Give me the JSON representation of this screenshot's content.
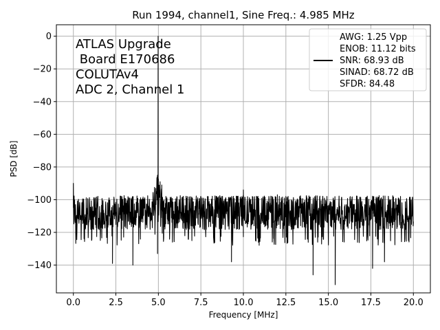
{
  "chart_data": {
    "type": "line",
    "title": "Run 1994, channel1, Sine Freq.: 4.985 MHz",
    "xlabel": "Frequency [MHz]",
    "ylabel": "PSD [dB]",
    "xlim": [
      -1,
      21
    ],
    "ylim": [
      -157,
      7
    ],
    "xticks": [
      0.0,
      2.5,
      5.0,
      7.5,
      10.0,
      12.5,
      15.0,
      17.5,
      20.0
    ],
    "xtick_labels": [
      "0.0",
      "2.5",
      "5.0",
      "7.5",
      "10.0",
      "12.5",
      "15.0",
      "17.5",
      "20.0"
    ],
    "yticks": [
      0,
      -20,
      -40,
      -60,
      -80,
      -100,
      -120,
      -140
    ],
    "ytick_labels": [
      "0",
      "−20",
      "−40",
      "−60",
      "−80",
      "−100",
      "−120",
      "−140"
    ],
    "grid": true,
    "annotation_lines": [
      "ATLAS Upgrade",
      " Board E170686",
      "COLUTAv4",
      "ADC 2, Channel 1"
    ],
    "legend": {
      "placement": "top-right",
      "entries": [
        "AWG: 1.25 Vpp",
        "ENOB: 11.12 bits",
        "SNR: 68.93 dB",
        "SINAD: 68.72 dB",
        "SFDR: 84.48"
      ]
    },
    "series": [
      {
        "name": "PSD",
        "color": "#000000",
        "noise_floor_db": -108,
        "noise_band_db": [
          -122,
          -99
        ],
        "fundamental": {
          "x": 4.985,
          "y": 0
        },
        "peaks": [
          {
            "x": 0.0,
            "y": -90
          },
          {
            "x": 4.95,
            "y": -85
          },
          {
            "x": 5.1,
            "y": -89
          },
          {
            "x": 5.2,
            "y": -91
          },
          {
            "x": 10.0,
            "y": -94
          },
          {
            "x": 12.0,
            "y": -97
          },
          {
            "x": 12.5,
            "y": -98
          }
        ],
        "dips": [
          {
            "x": 2.3,
            "y": -139
          },
          {
            "x": 3.5,
            "y": -140
          },
          {
            "x": 4.95,
            "y": -133
          },
          {
            "x": 9.3,
            "y": -138
          },
          {
            "x": 14.1,
            "y": -146
          },
          {
            "x": 15.4,
            "y": -152
          },
          {
            "x": 17.6,
            "y": -142
          },
          {
            "x": 18.3,
            "y": -138
          }
        ]
      }
    ]
  }
}
